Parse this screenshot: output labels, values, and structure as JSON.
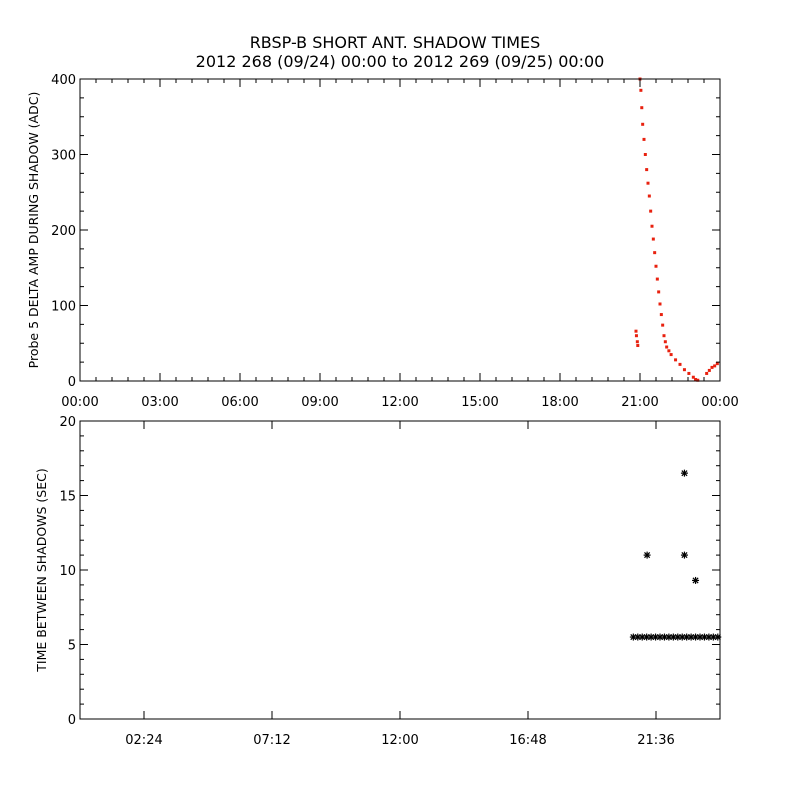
{
  "title_line1": "RBSP-B SHORT ANT. SHADOW TIMES",
  "title_line2": "2012 268 (09/24) 00:00 to 2012 269 (09/25) 00:00",
  "colors": {
    "top_points": "#e8210f",
    "bottom_points": "#000000",
    "axes": "#000000"
  },
  "chart_data": [
    {
      "type": "scatter",
      "title": "RBSP-B SHORT ANT. SHADOW TIMES",
      "xlabel": "",
      "ylabel": "Probe 5 DELTA AMP DURING SHADOW (ADC)",
      "xlim": [
        "2012-09-24 00:00",
        "2012-09-25 00:00"
      ],
      "ylim": [
        0,
        400
      ],
      "xticks": [
        "00:00",
        "03:00",
        "06:00",
        "09:00",
        "12:00",
        "15:00",
        "18:00",
        "21:00",
        "00:00"
      ],
      "yticks": [
        "0",
        "100",
        "200",
        "300",
        "400"
      ],
      "grid": false,
      "marker": "dot",
      "series": [
        {
          "x": [
            "20:51",
            "20:52",
            "20:54",
            "20:55",
            "21:00",
            "21:02",
            "21:04",
            "21:06",
            "21:09",
            "21:12",
            "21:15",
            "21:18",
            "21:21",
            "21:24",
            "21:27",
            "21:30",
            "21:33",
            "21:36",
            "21:39",
            "21:42",
            "21:45",
            "21:48",
            "21:51",
            "21:54",
            "21:57",
            "22:00",
            "22:05",
            "22:10",
            "22:20",
            "22:30",
            "22:40",
            "22:50",
            "23:00",
            "23:05",
            "23:10",
            "23:30",
            "23:36",
            "23:42",
            "23:48",
            "23:54"
          ],
          "y": [
            66,
            60,
            52,
            47,
            400,
            385,
            362,
            340,
            320,
            300,
            280,
            262,
            245,
            225,
            205,
            188,
            170,
            152,
            135,
            118,
            102,
            88,
            74,
            60,
            52,
            45,
            40,
            35,
            28,
            22,
            15,
            10,
            5,
            2,
            1,
            10,
            14,
            18,
            20,
            23
          ]
        }
      ]
    },
    {
      "type": "scatter",
      "title": "",
      "xlabel": "",
      "ylabel": "TIME BETWEEN SHADOWS (SEC)",
      "xlim": [
        "2012-09-24 00:00",
        "2012-09-25 00:00"
      ],
      "ylim": [
        0,
        20
      ],
      "xticks": [
        "02:24",
        "07:12",
        "12:00",
        "16:48",
        "21:36"
      ],
      "yticks": [
        "0",
        "5",
        "10",
        "15",
        "20"
      ],
      "grid": false,
      "marker": "asterisk",
      "series": [
        {
          "x": [
            "20:45",
            "20:55",
            "21:05",
            "21:15",
            "21:25",
            "21:35",
            "21:45",
            "21:55",
            "22:05",
            "22:15",
            "22:25",
            "22:35",
            "22:45",
            "22:55",
            "23:05",
            "23:15",
            "23:25",
            "23:35",
            "23:45",
            "23:55",
            "21:16",
            "22:40",
            "22:40",
            "23:05"
          ],
          "y": [
            5.5,
            5.5,
            5.5,
            5.5,
            5.5,
            5.5,
            5.5,
            5.5,
            5.5,
            5.5,
            5.5,
            5.5,
            5.5,
            5.5,
            5.5,
            5.5,
            5.5,
            5.5,
            5.5,
            5.5,
            11.0,
            16.5,
            11.0,
            9.3
          ]
        }
      ]
    }
  ]
}
